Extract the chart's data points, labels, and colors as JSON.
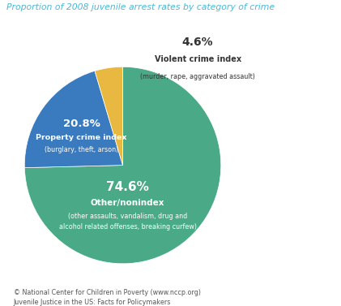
{
  "title": "Proportion of 2008 juvenile arrest rates by category of crime",
  "title_color": "#4ab8d8",
  "slices": [
    {
      "label": "Other/nonindex",
      "value": 74.6,
      "color": "#4aaa88"
    },
    {
      "label": "Property crime index",
      "value": 20.8,
      "color": "#3a7abf"
    },
    {
      "label": "Violent crime index",
      "value": 4.6,
      "color": "#e8b840"
    }
  ],
  "bg_color": "#ffffff",
  "footer_line1": "© National Center for Children in Poverty (www.nccp.org)",
  "footer_line2": "Juvenile Justice in the US: Facts for Policymakers"
}
